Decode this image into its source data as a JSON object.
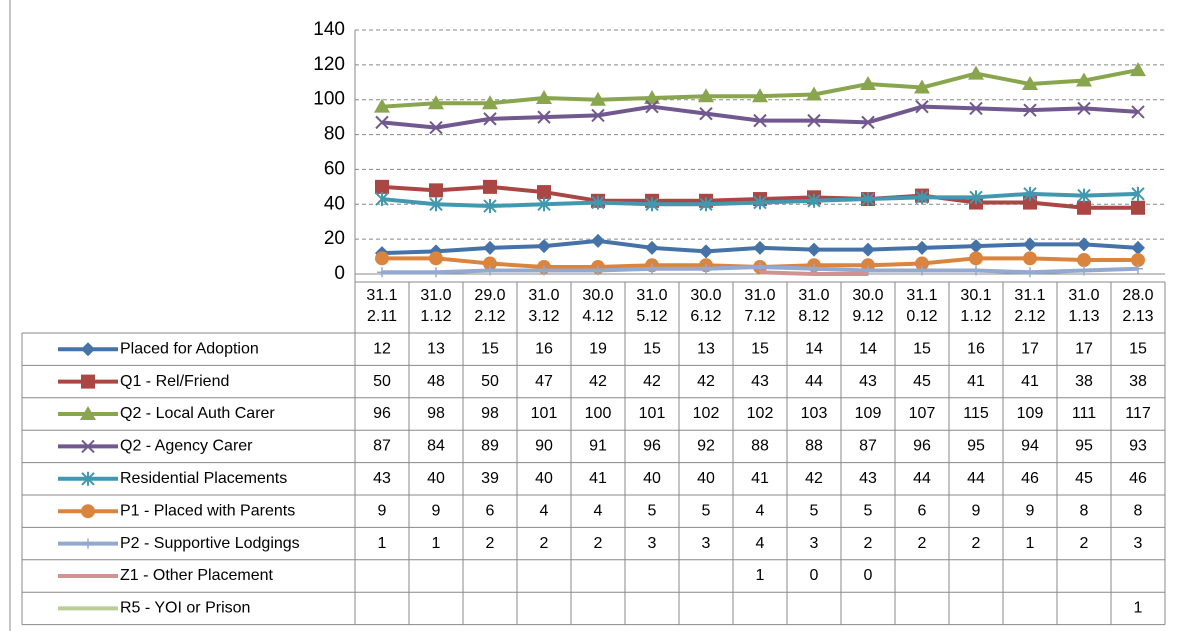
{
  "chart_data": {
    "type": "line",
    "categories": [
      "31.12.11",
      "31.01.12",
      "29.02.12",
      "31.03.12",
      "30.04.12",
      "31.05.12",
      "30.06.12",
      "31.07.12",
      "31.08.12",
      "30.09.12",
      "31.10.12",
      "30.11.12",
      "31.12.12",
      "31.01.13",
      "28.02.13"
    ],
    "ylim": [
      0,
      140
    ],
    "yticks": [
      0,
      20,
      40,
      60,
      80,
      100,
      120,
      140
    ],
    "grid": true,
    "series": [
      {
        "name": "Placed for Adoption",
        "color": "#4572a7",
        "marker": "diamond",
        "values": [
          12,
          13,
          15,
          16,
          19,
          15,
          13,
          15,
          14,
          14,
          15,
          16,
          17,
          17,
          15
        ]
      },
      {
        "name": "Q1 - Rel/Friend",
        "color": "#aa4643",
        "marker": "square",
        "values": [
          50,
          48,
          50,
          47,
          42,
          42,
          42,
          43,
          44,
          43,
          45,
          41,
          41,
          38,
          38
        ]
      },
      {
        "name": "Q2 - Local Auth Carer",
        "color": "#89a54e",
        "marker": "triangle",
        "values": [
          96,
          98,
          98,
          101,
          100,
          101,
          102,
          102,
          103,
          109,
          107,
          115,
          109,
          111,
          117
        ]
      },
      {
        "name": "Q2 - Agency Carer",
        "color": "#71588f",
        "marker": "x",
        "values": [
          87,
          84,
          89,
          90,
          91,
          96,
          92,
          88,
          88,
          87,
          96,
          95,
          94,
          95,
          93
        ]
      },
      {
        "name": "Residential Placements",
        "color": "#4198af",
        "marker": "star",
        "values": [
          43,
          40,
          39,
          40,
          41,
          40,
          40,
          41,
          42,
          43,
          44,
          44,
          46,
          45,
          46
        ]
      },
      {
        "name": "P1 - Placed with Parents",
        "color": "#db843d",
        "marker": "circle",
        "values": [
          9,
          9,
          6,
          4,
          4,
          5,
          5,
          4,
          5,
          5,
          6,
          9,
          9,
          8,
          8
        ]
      },
      {
        "name": "P2 - Supportive Lodgings",
        "color": "#93a9cf",
        "marker": "plus",
        "values": [
          1,
          1,
          2,
          2,
          2,
          3,
          3,
          4,
          3,
          2,
          2,
          2,
          1,
          2,
          3
        ]
      },
      {
        "name": "Z1 - Other Placement",
        "color": "#d19392",
        "marker": "none",
        "values": [
          null,
          null,
          null,
          null,
          null,
          null,
          null,
          1,
          0,
          0,
          null,
          null,
          null,
          null,
          null
        ]
      },
      {
        "name": "R5 - YOI or Prison",
        "color": "#b9cd96",
        "marker": "none",
        "values": [
          null,
          null,
          null,
          null,
          null,
          null,
          null,
          null,
          null,
          null,
          null,
          null,
          null,
          null,
          1
        ]
      }
    ]
  }
}
